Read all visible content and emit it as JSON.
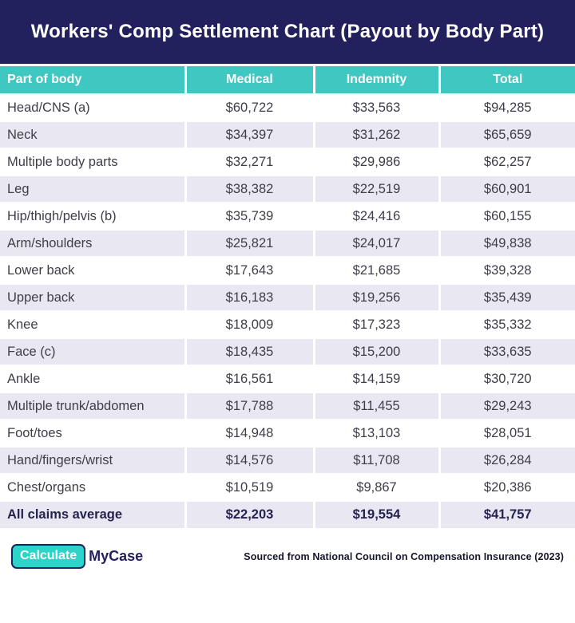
{
  "chart_data": {
    "type": "table",
    "title": "Workers' Comp Settlement Chart (Payout by Body Part)",
    "columns": [
      "Part of body",
      "Medical",
      "Indemnity",
      "Total"
    ],
    "rows": [
      [
        "Head/CNS (a)",
        "$60,722",
        "$33,563",
        "$94,285"
      ],
      [
        "Neck",
        "$34,397",
        "$31,262",
        "$65,659"
      ],
      [
        "Multiple body parts",
        "$32,271",
        "$29,986",
        "$62,257"
      ],
      [
        "Leg",
        "$38,382",
        "$22,519",
        "$60,901"
      ],
      [
        "Hip/thigh/pelvis (b)",
        "$35,739",
        "$24,416",
        "$60,155"
      ],
      [
        "Arm/shoulders",
        "$25,821",
        "$24,017",
        "$49,838"
      ],
      [
        "Lower back",
        "$17,643",
        "$21,685",
        "$39,328"
      ],
      [
        "Upper back",
        "$16,183",
        "$19,256",
        "$35,439"
      ],
      [
        "Knee",
        "$18,009",
        "$17,323",
        "$35,332"
      ],
      [
        "Face (c)",
        "$18,435",
        "$15,200",
        "$33,635"
      ],
      [
        "Ankle",
        "$16,561",
        "$14,159",
        "$30,720"
      ],
      [
        "Multiple trunk/abdomen",
        "$17,788",
        "$11,455",
        "$29,243"
      ],
      [
        "Foot/toes",
        "$14,948",
        "$13,103",
        "$28,051"
      ],
      [
        "Hand/fingers/wrist",
        "$14,576",
        "$11,708",
        "$26,284"
      ],
      [
        "Chest/organs",
        "$10,519",
        "$9,867",
        "$20,386"
      ]
    ],
    "summary_row": [
      "All claims average",
      "$22,203",
      "$19,554",
      "$41,757"
    ],
    "layout": "header-banner, teal column header, alternating row stripes, bold summary row"
  },
  "colors": {
    "banner_navy": "#23205e",
    "header_teal": "#3fc7c1",
    "stripe_lavender": "#e9e8f2",
    "logo_teal": "#2cd5c9",
    "body_text": "#3e3e49"
  },
  "footer": {
    "logo_calculate": "Calculate",
    "logo_mycase": "MyCase",
    "source": "Sourced from National Council on Compensation Insurance (2023)"
  }
}
